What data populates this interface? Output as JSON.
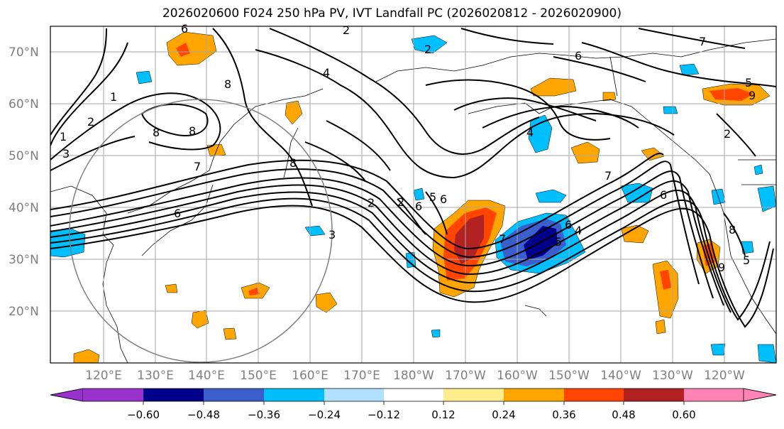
{
  "title": "2026020600 F024 250 hPa PV, IVT Landfall PC (2026020812 - 2026020900)",
  "lat_labels": [
    "70°N",
    "60°N",
    "50°N",
    "40°N",
    "30°N",
    "20°N"
  ],
  "lon_labels": [
    "120°E",
    "130°E",
    "140°E",
    "150°E",
    "160°E",
    "170°E",
    "180°W",
    "170°W",
    "160°W",
    "150°W",
    "140°W",
    "130°W",
    "120°W"
  ],
  "colorbar": {
    "colors": [
      "#9932cc",
      "#00008b",
      "#3a5fcd",
      "#00bfff",
      "#b0e2ff",
      "#ffffff",
      "#ffec8b",
      "#ffa500",
      "#ff4500",
      "#b22222",
      "#ff83b4"
    ],
    "ticks": [
      "−0.60",
      "−0.48",
      "−0.36",
      "−0.24",
      "−0.12",
      "0.12",
      "0.24",
      "0.36",
      "0.48",
      "0.60"
    ]
  },
  "contour_labels": [
    "6",
    "2",
    "6",
    "5",
    "8",
    "4",
    "2",
    "1",
    "3",
    "1",
    "2",
    "7",
    "8",
    "8",
    "7",
    "6",
    "6",
    "5",
    "4",
    "7",
    "8",
    "9",
    "6",
    "3",
    "2",
    "5",
    "8",
    "4",
    "5",
    "2",
    "7",
    "6",
    "9",
    "6",
    "2"
  ]
}
